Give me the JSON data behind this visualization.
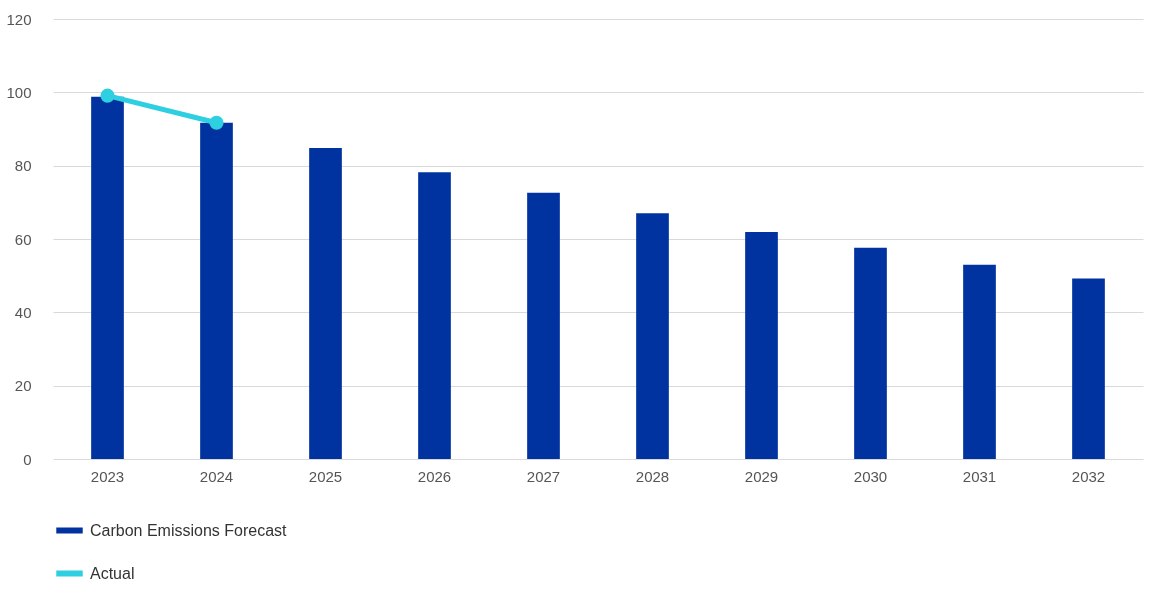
{
  "chart_data": {
    "type": "bar",
    "categories": [
      "2023",
      "2024",
      "2025",
      "2026",
      "2027",
      "2028",
      "2029",
      "2030",
      "2031",
      "2032"
    ],
    "series": [
      {
        "name": "Carbon Emissions Forecast",
        "color": "#0033a0",
        "values": [
          98.8,
          91.7,
          84.8,
          78.2,
          72.6,
          67.0,
          61.9,
          57.6,
          53.0,
          49.2
        ]
      },
      {
        "name": "Actual",
        "type": "line",
        "color": "#2ecfe0",
        "marker": "circle",
        "values": [
          99.1,
          91.7,
          null,
          null,
          null,
          null,
          null,
          null,
          null,
          null
        ]
      }
    ],
    "ylim": [
      0,
      120
    ],
    "yticks": [
      0,
      20,
      40,
      60,
      80,
      100,
      120
    ],
    "grid": "y",
    "legend": "bottom"
  }
}
